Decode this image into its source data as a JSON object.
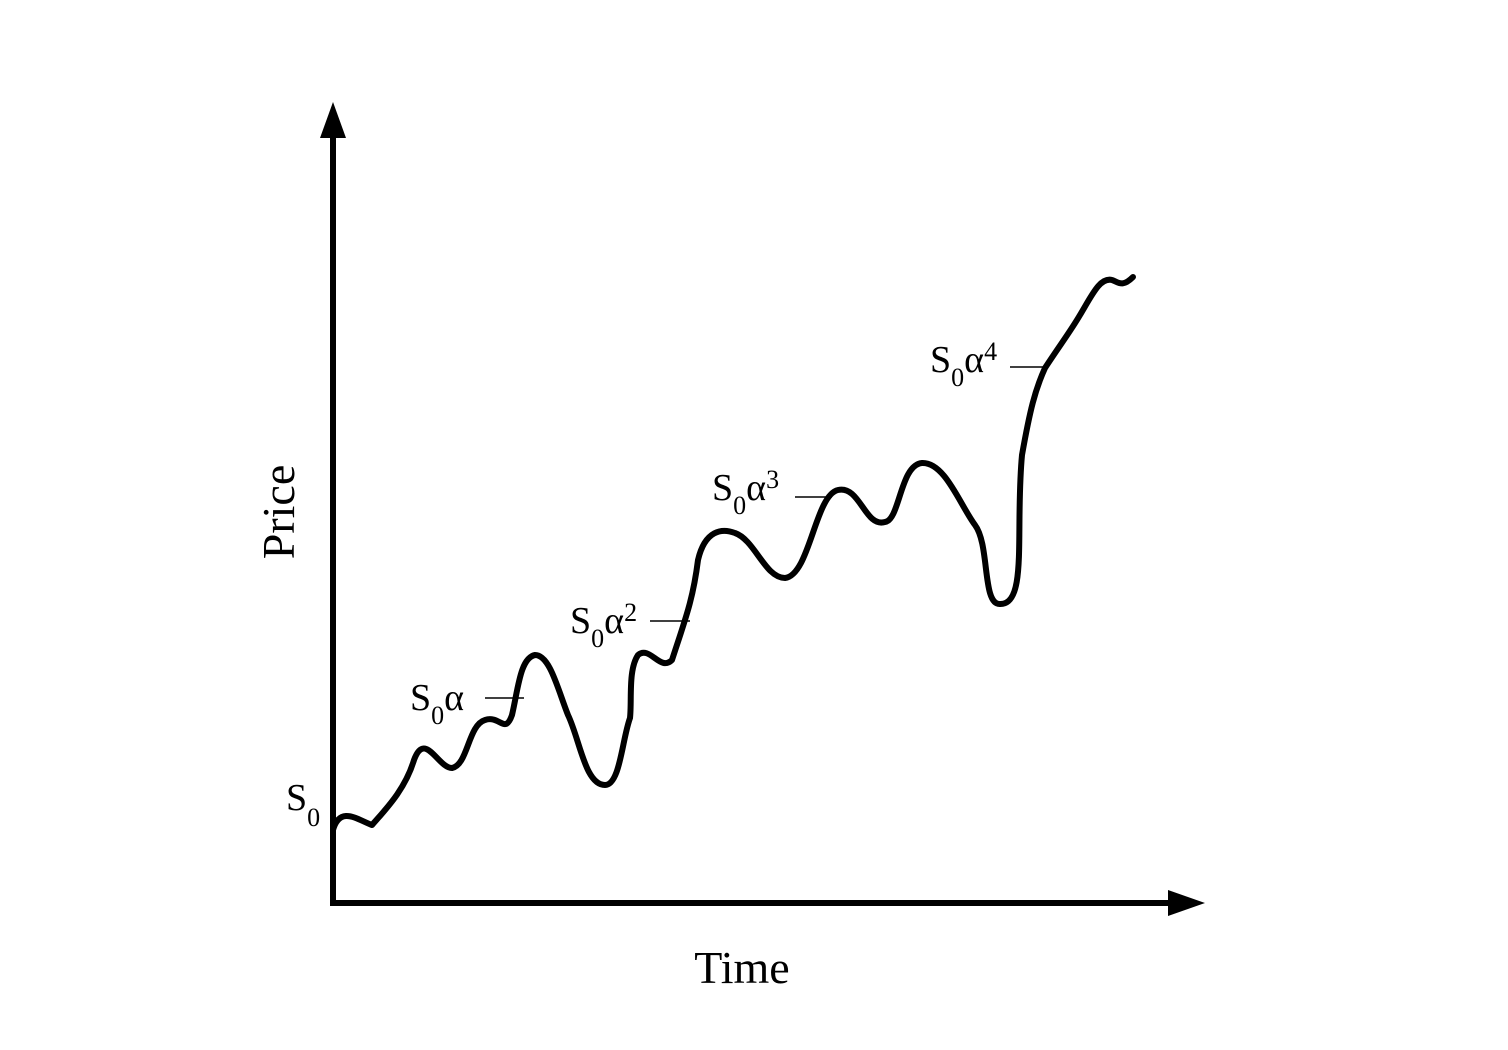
{
  "axes": {
    "x_label": "Time",
    "y_label": "Price"
  },
  "levels": [
    {
      "id": "s0",
      "base": "S",
      "subscript": "0",
      "symbol": "",
      "superscript": ""
    },
    {
      "id": "s0a1",
      "base": "S",
      "subscript": "0",
      "symbol": "α",
      "superscript": ""
    },
    {
      "id": "s0a2",
      "base": "S",
      "subscript": "0",
      "symbol": "α",
      "superscript": "2"
    },
    {
      "id": "s0a3",
      "base": "S",
      "subscript": "0",
      "symbol": "α",
      "superscript": "3"
    },
    {
      "id": "s0a4",
      "base": "S",
      "subscript": "0",
      "symbol": "α",
      "superscript": "4"
    }
  ],
  "colors": {
    "ink": "#000000",
    "background": "#ffffff"
  }
}
